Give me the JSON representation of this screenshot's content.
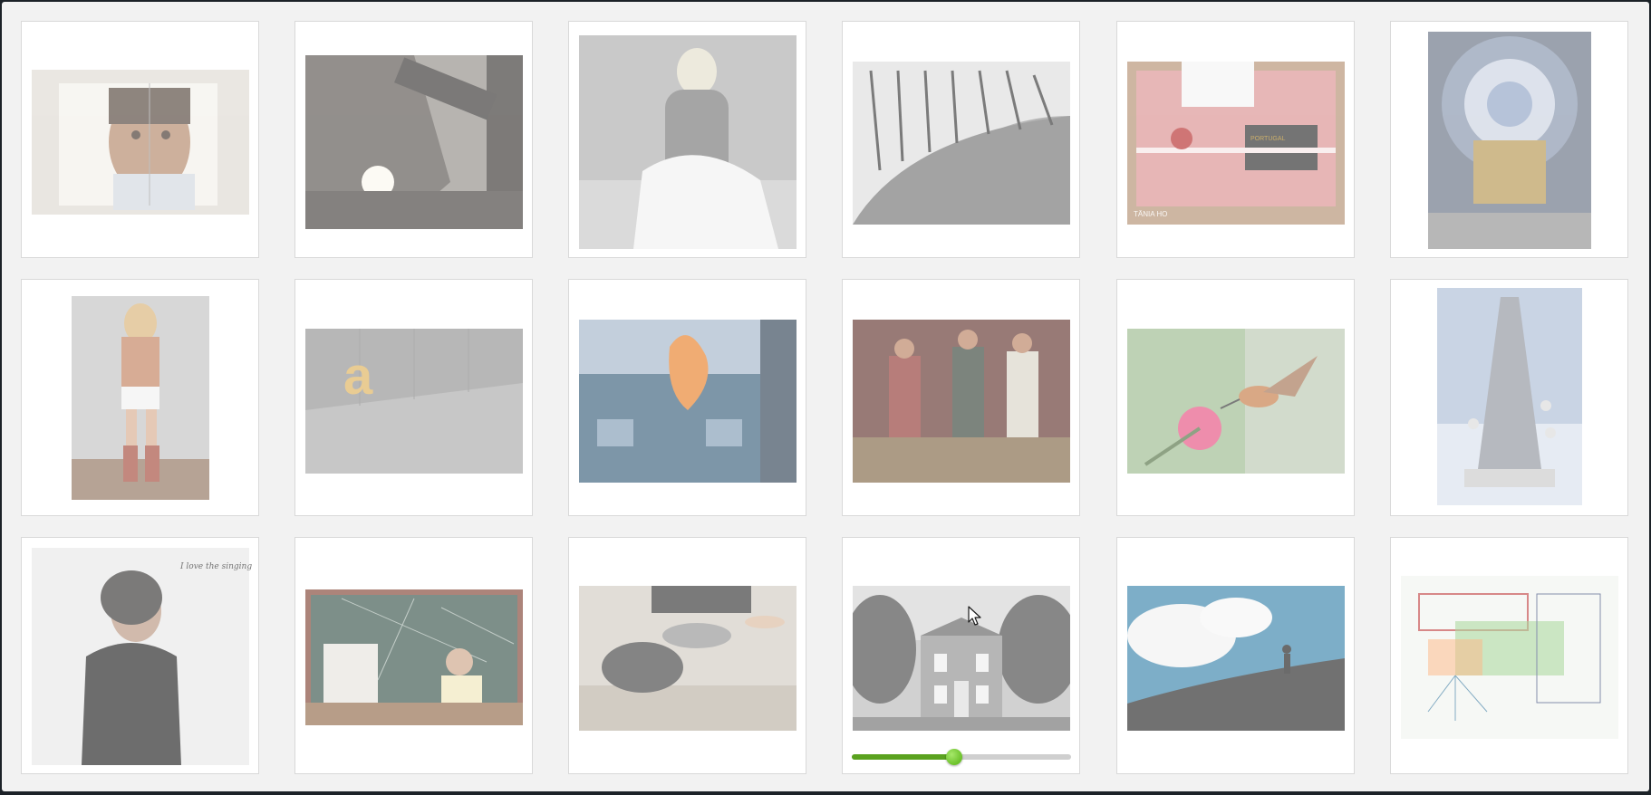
{
  "gallery": {
    "photos": [
      {
        "subject": "man-portrait-notebook"
      },
      {
        "subject": "happy-banner-sun"
      },
      {
        "subject": "woman-back-sheet"
      },
      {
        "subject": "typewriter-keys"
      },
      {
        "subject": "pink-passport-holder",
        "caption": "TÂNIA HO",
        "label": "PORTUGAL"
      },
      {
        "subject": "cathedral-dome"
      },
      {
        "subject": "girl-red-boots"
      },
      {
        "subject": "letter-a-floor",
        "label": "a"
      },
      {
        "subject": "house-fire"
      },
      {
        "subject": "rock-band-concert"
      },
      {
        "subject": "hummingbird-flower"
      },
      {
        "subject": "silver-tower-sculpture"
      },
      {
        "subject": "woman-black-top",
        "caption": "I love the singing"
      },
      {
        "subject": "boy-at-computer-chalkboard"
      },
      {
        "subject": "dancers-floor"
      },
      {
        "subject": "house-black-and-white"
      },
      {
        "subject": "silhouette-hill-sky"
      },
      {
        "subject": "mind-map-drawing"
      }
    ]
  },
  "slider": {
    "value_fraction": 0.465,
    "fill_color": "#5aa21f",
    "thumb_color": "#6cc12a"
  },
  "cursor": {
    "icon": "arrow-pointer"
  }
}
